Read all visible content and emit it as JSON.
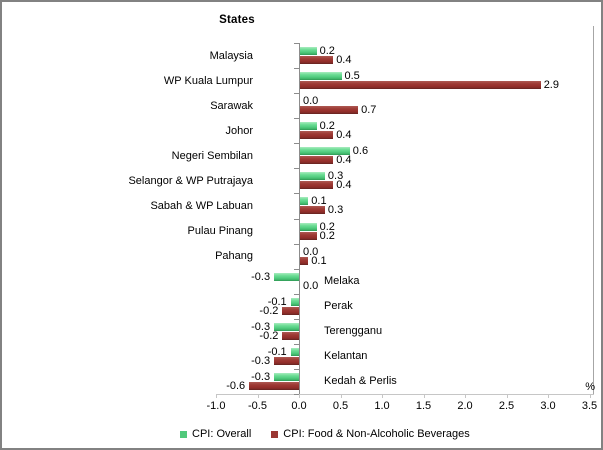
{
  "chart_data": {
    "type": "bar",
    "orientation": "horizontal",
    "title": "States",
    "xlabel": "%",
    "ylabel": "",
    "xlim": [
      -1.0,
      3.5
    ],
    "x_tick_step": 0.5,
    "x_ticks": [
      -1.0,
      -0.5,
      0.0,
      0.5,
      1.0,
      1.5,
      2.0,
      2.5,
      3.0,
      3.5
    ],
    "grid": false,
    "legend_position": "bottom",
    "value_labels": true,
    "categories": [
      "Malaysia",
      "WP Kuala Lumpur",
      "Sarawak",
      "Johor",
      "Negeri Sembilan",
      "Selangor & WP Putrajaya",
      "Sabah & WP Labuan",
      "Pulau Pinang",
      "Pahang",
      "Melaka",
      "Perak",
      "Terengganu",
      "Kelantan",
      "Kedah & Perlis"
    ],
    "series": [
      {
        "name": "CPI: Overall",
        "color": "#52CE80",
        "values": [
          0.2,
          0.5,
          0.0,
          0.2,
          0.6,
          0.3,
          0.1,
          0.2,
          0.0,
          -0.3,
          -0.1,
          -0.3,
          -0.1,
          -0.3
        ]
      },
      {
        "name": "CPI: Food & Non-Alcoholic Beverages",
        "color": "#9A3733",
        "values": [
          0.4,
          2.9,
          0.7,
          0.4,
          0.4,
          0.4,
          0.3,
          0.2,
          0.1,
          0.0,
          -0.2,
          -0.2,
          -0.3,
          -0.6
        ]
      }
    ]
  }
}
